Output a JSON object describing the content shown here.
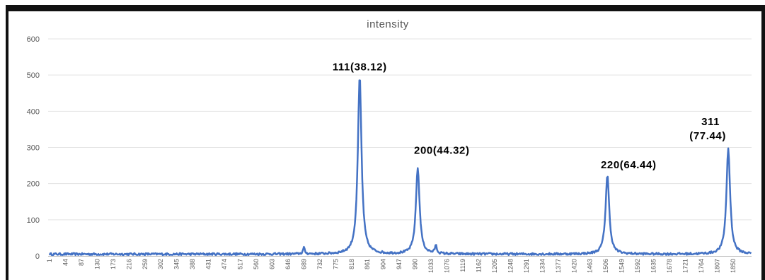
{
  "chart_data": {
    "type": "line",
    "title": "intensity",
    "xlabel": "",
    "ylabel": "",
    "ylim": [
      0,
      600
    ],
    "yticks": [
      "0",
      "100",
      "200",
      "300",
      "400",
      "500",
      "600"
    ],
    "grid": true,
    "x_range": [
      1,
      1900
    ],
    "xtick_labels": [
      "1",
      "44",
      "87",
      "130",
      "173",
      "216",
      "259",
      "302",
      "345",
      "388",
      "431",
      "474",
      "517",
      "560",
      "603",
      "646",
      "689",
      "732",
      "775",
      "818",
      "861",
      "904",
      "947",
      "990",
      "1033",
      "1076",
      "1119",
      "1162",
      "1205",
      "1248",
      "1291",
      "1334",
      "1377",
      "1420",
      "1463",
      "1506",
      "1549",
      "1592",
      "1635",
      "1678",
      "1721",
      "1764",
      "1807",
      "1850"
    ],
    "series": [
      {
        "color": "#4472C4",
        "baseline": 5,
        "peaks": [
          {
            "x": 689,
            "y": 22
          },
          {
            "x": 840,
            "y": 497
          },
          {
            "x": 997,
            "y": 243
          },
          {
            "x": 1046,
            "y": 27
          },
          {
            "x": 1510,
            "y": 223
          },
          {
            "x": 1837,
            "y": 297
          }
        ]
      }
    ],
    "annotations": [
      {
        "text": "111(38.12)",
        "x": 840,
        "y": 497
      },
      {
        "text": "200(44.32)",
        "x": 997,
        "y": 243
      },
      {
        "text": "220(64.44)",
        "x": 1510,
        "y": 223
      },
      {
        "text": "311",
        "x": 1837,
        "y": 297
      },
      {
        "text": "(77.44)",
        "x": 1837,
        "y": 297
      }
    ]
  }
}
